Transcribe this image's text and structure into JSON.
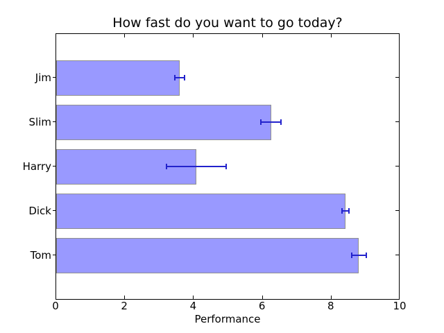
{
  "chart_data": {
    "type": "bar",
    "orientation": "horizontal",
    "title": "How fast do you want to go today?",
    "xlabel": "Performance",
    "ylabel": "",
    "categories": [
      "Jim",
      "Slim",
      "Harry",
      "Dick",
      "Tom"
    ],
    "categories_order": "top-to-bottom",
    "values": [
      3.58,
      6.24,
      4.07,
      8.4,
      8.8
    ],
    "xerr": [
      0.14,
      0.3,
      0.86,
      0.1,
      0.22
    ],
    "xlim": [
      0,
      10
    ],
    "xticks": [
      0,
      2,
      4,
      6,
      8,
      10
    ],
    "inner_xticks": [
      2,
      4,
      6,
      8
    ],
    "grid": false,
    "legend": null,
    "colors": {
      "bar_fill": "#9999ff",
      "bar_edge": "#8e8e8e",
      "error_bar": "#2222cc",
      "axes": "#000000",
      "text": "#000000",
      "background": "#ffffff"
    }
  }
}
